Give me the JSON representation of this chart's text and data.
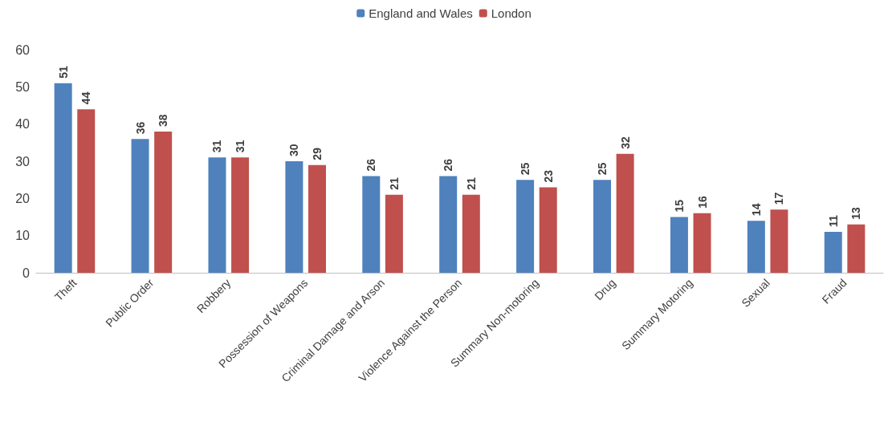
{
  "chart_data": {
    "type": "bar",
    "categories": [
      "Theft",
      "Public Order",
      "Robbery",
      "Possession of Weapons",
      "Criminal Damage and Arson",
      "Violence Against the Person",
      "Summary Non-motoring",
      "Drug",
      "Summary Motoring",
      "Sexual",
      "Fraud"
    ],
    "series": [
      {
        "name": "England and Wales",
        "color": "#4f81bd",
        "values": [
          51,
          36,
          31,
          30,
          26,
          26,
          25,
          25,
          15,
          14,
          11
        ]
      },
      {
        "name": "London",
        "color": "#c0504d",
        "values": [
          44,
          38,
          31,
          29,
          21,
          21,
          23,
          32,
          16,
          17,
          13
        ]
      }
    ],
    "ylim": [
      0,
      60
    ],
    "yticks": [
      0,
      10,
      20,
      30,
      40,
      50,
      60
    ],
    "grid": false,
    "legend": "top",
    "data_labels": true
  }
}
